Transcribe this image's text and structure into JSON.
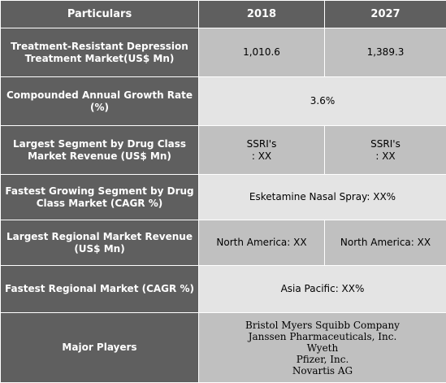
{
  "header": {
    "col_particulars": "Particulars",
    "col_2018": "2018",
    "col_2027": "2027"
  },
  "rows": {
    "market": {
      "label": "Treatment-Resistant Depression Treatment Market(US$ Mn)",
      "v2018": "1,010.6",
      "v2027": "1,389.3"
    },
    "cagr": {
      "label": "Compounded Annual Growth Rate (%)",
      "value": "3.6%"
    },
    "largest_segment": {
      "label": "Largest Segment by Drug Class Market Revenue (US$ Mn)",
      "v2018_line1": "SSRI's",
      "v2018_line2": ": XX",
      "v2027_line1": "SSRI's",
      "v2027_line2": ": XX"
    },
    "fastest_segment": {
      "label": "Fastest Growing Segment by Drug Class Market (CAGR %)",
      "value": "Esketamine Nasal Spray:  XX%"
    },
    "largest_region": {
      "label": "Largest Regional Market Revenue (US$ Mn)",
      "v2018": "North America: XX",
      "v2027": "North America: XX"
    },
    "fastest_region": {
      "label": "Fastest Regional Market (CAGR %)",
      "value": "Asia Pacific: XX%"
    },
    "players": {
      "label": "Major Players",
      "list": [
        "Bristol Myers Squibb Company",
        "Janssen Pharmaceuticals, Inc.",
        "Wyeth",
        "Pfizer, Inc.",
        "Novartis AG"
      ]
    }
  }
}
